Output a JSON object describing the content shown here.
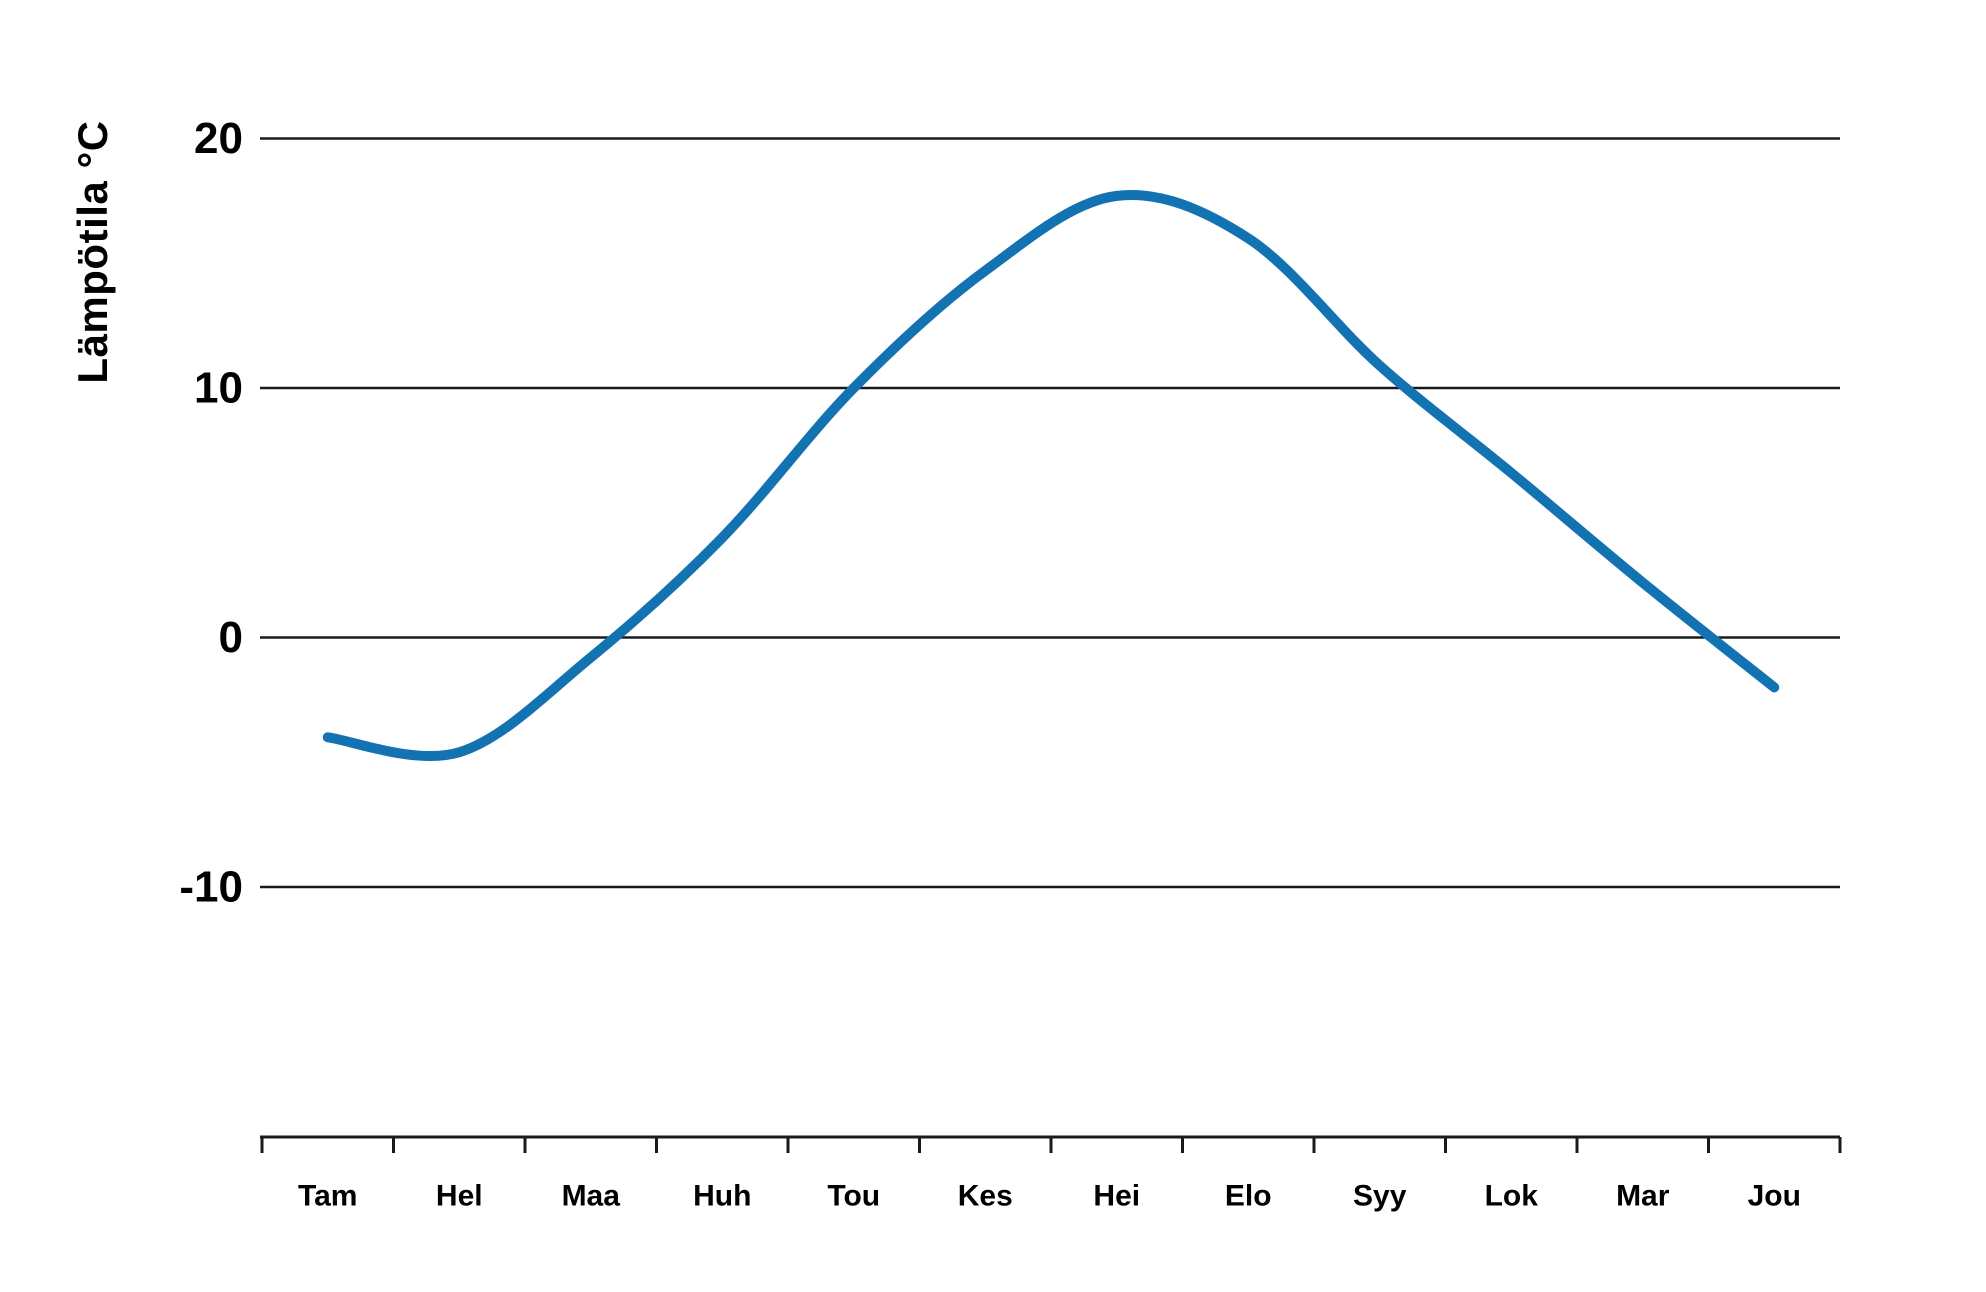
{
  "chart_data": {
    "type": "line",
    "title": "",
    "ylabel": "Lämpötila °C",
    "xlabel": "",
    "categories": [
      "Tam",
      "Hel",
      "Maa",
      "Huh",
      "Tou",
      "Kes",
      "Hei",
      "Elo",
      "Syy",
      "Lok",
      "Mar",
      "Jou"
    ],
    "series": [
      {
        "name": "Lämpötila",
        "values": [
          -4.0,
          -4.6,
          -0.8,
          4.0,
          10.0,
          14.7,
          17.7,
          16.0,
          10.9,
          6.6,
          2.2,
          -2.0
        ]
      }
    ],
    "yticks": [
      20,
      10,
      0,
      -10
    ],
    "ylim": [
      -20,
      20
    ],
    "grid": "horizontal-only",
    "legend": "none",
    "smooth": true,
    "colors": {
      "line": "#1272b2",
      "grid": "#1a1a1a",
      "axis": "#1a1a1a",
      "text": "#000000",
      "background": "#ffffff"
    }
  }
}
